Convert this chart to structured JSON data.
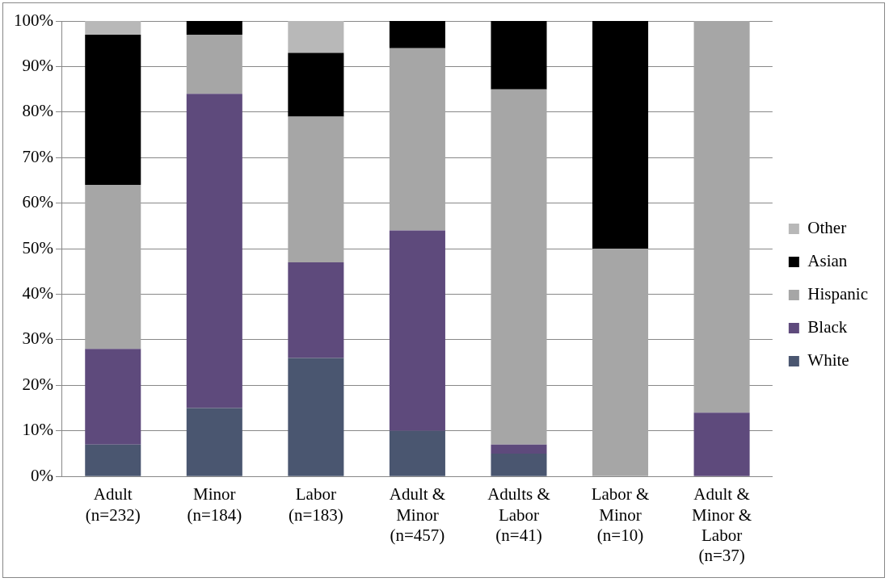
{
  "chart_data": {
    "type": "bar",
    "stacked": true,
    "categories": [
      "Adult\n(n=232)",
      "Minor\n(n=184)",
      "Labor\n(n=183)",
      "Adult &\nMinor\n(n=457)",
      "Adults &\nLabor\n(n=41)",
      "Labor &\nMinor\n(n=10)",
      "Adult &\nMinor &\nLabor\n(n=37)"
    ],
    "series": [
      {
        "name": "White",
        "color": "#4a5670",
        "values": [
          7,
          15,
          26,
          10,
          5,
          0,
          0
        ]
      },
      {
        "name": "Black",
        "color": "#5e4a7c",
        "values": [
          21,
          69,
          21,
          44,
          2,
          0,
          14
        ]
      },
      {
        "name": "Hispanic",
        "color": "#a6a6a6",
        "values": [
          36,
          13,
          32,
          40,
          78,
          50,
          86
        ]
      },
      {
        "name": "Asian",
        "color": "#000000",
        "values": [
          33,
          3,
          14,
          6,
          15,
          50,
          0
        ]
      },
      {
        "name": "Other",
        "color": "#b8b8b8",
        "values": [
          3,
          0,
          7,
          0,
          0,
          0,
          0
        ]
      }
    ],
    "ylim": [
      0,
      100
    ],
    "yticks": [
      {
        "value": 0,
        "label": "0%"
      },
      {
        "value": 10,
        "label": "10%"
      },
      {
        "value": 20,
        "label": "20%"
      },
      {
        "value": 30,
        "label": "30%"
      },
      {
        "value": 40,
        "label": "40%"
      },
      {
        "value": 50,
        "label": "50%"
      },
      {
        "value": 60,
        "label": "60%"
      },
      {
        "value": 70,
        "label": "70%"
      },
      {
        "value": 80,
        "label": "80%"
      },
      {
        "value": 90,
        "label": "90%"
      },
      {
        "value": 100,
        "label": "100%"
      }
    ],
    "grid": "y",
    "legend": "right"
  }
}
